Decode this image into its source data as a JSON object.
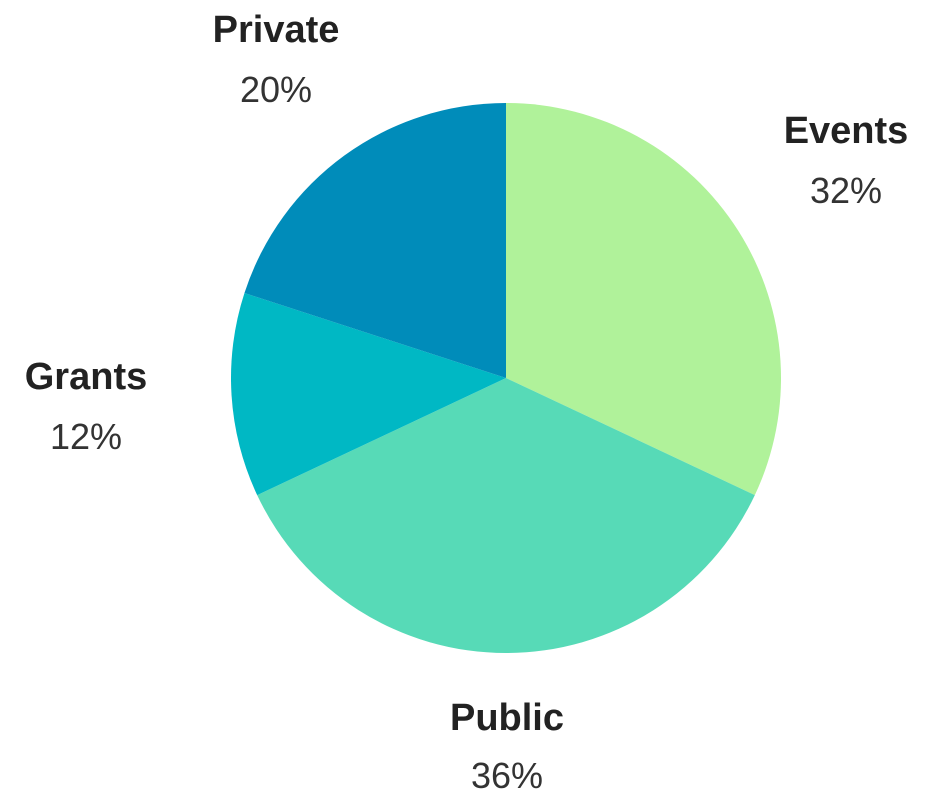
{
  "chart_data": {
    "type": "pie",
    "start": "12 o'clock",
    "direction": "clockwise",
    "slices": [
      {
        "label": "Events",
        "value": 32,
        "value_text": "32%",
        "color": "#b0f29a"
      },
      {
        "label": "Public",
        "value": 36,
        "value_text": "36%",
        "color": "#57dab7"
      },
      {
        "label": "Grants",
        "value": 12,
        "value_text": "12%",
        "color": "#00b8c4"
      },
      {
        "label": "Private",
        "value": 20,
        "value_text": "20%",
        "color": "#008cba"
      }
    ]
  }
}
